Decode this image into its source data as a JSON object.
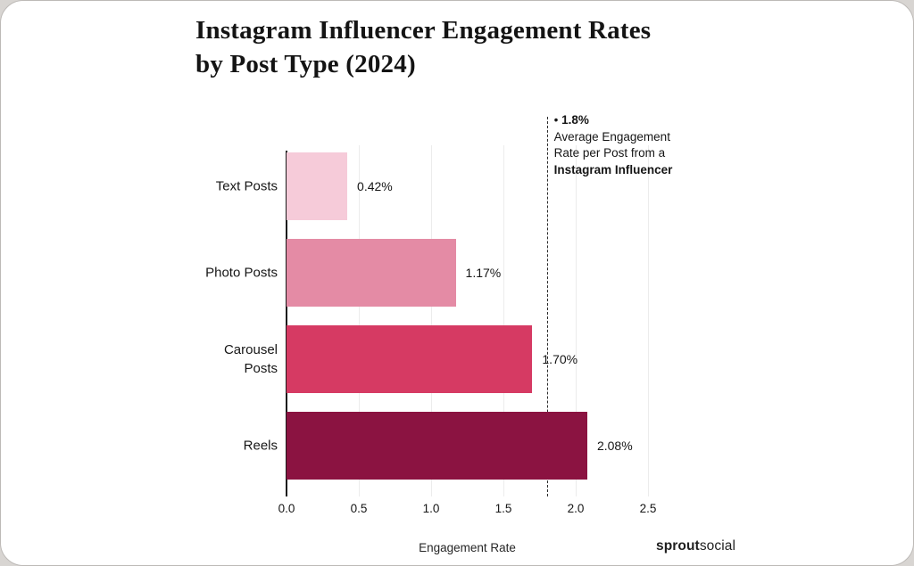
{
  "header": {
    "title_line1": "Instagram Influencer Engagement Rates",
    "title_line2": "by Post Type (2024)"
  },
  "chart_data": {
    "type": "bar",
    "orientation": "horizontal",
    "title": "Instagram Influencer Engagement Rates by Post Type (2024)",
    "categories": [
      "Text Posts",
      "Photo Posts",
      "Carousel Posts",
      "Reels"
    ],
    "category_display": [
      [
        "Text Posts"
      ],
      [
        "Photo Posts"
      ],
      [
        "Carousel",
        "Posts"
      ],
      [
        "Reels"
      ]
    ],
    "values": [
      0.42,
      1.17,
      1.7,
      2.08
    ],
    "value_labels": [
      "0.42%",
      "1.17%",
      "1.70%",
      "2.08%"
    ],
    "bar_colors": [
      "#f6cbd9",
      "#e48ba5",
      "#d63a63",
      "#8b1341"
    ],
    "xlabel": "Engagement Rate",
    "xlim": [
      0,
      2.5
    ],
    "xticks": [
      0,
      0.5,
      1.0,
      1.5,
      2.0,
      2.5
    ],
    "xtick_labels": [
      "0.0",
      "0.5",
      "1.0",
      "1.5",
      "2.0",
      "2.5"
    ],
    "grid": true,
    "legend": false,
    "reference_line": {
      "value": 1.8,
      "marker": "•",
      "label_value": "1.8%",
      "label_lines": [
        "Average Engagement",
        "Rate per Post from a"
      ],
      "label_bold_line": "Instagram Influencer"
    }
  },
  "footer": {
    "brand_bold": "sprout",
    "brand_regular": "social"
  }
}
